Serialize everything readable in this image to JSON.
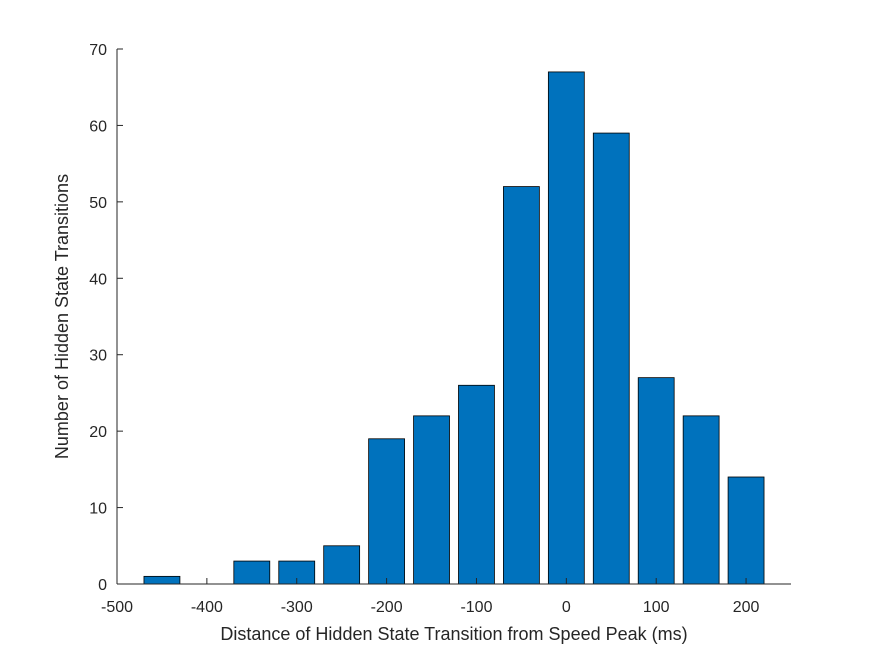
{
  "chart_data": {
    "type": "bar",
    "title": "",
    "xlabel": "Distance of Hidden State Transition from Speed Peak (ms)",
    "ylabel": "Number of Hidden State Transitions",
    "xlim": [
      -500,
      250
    ],
    "ylim": [
      0,
      70
    ],
    "xticks": [
      -500,
      -400,
      -300,
      -200,
      -100,
      0,
      100,
      200
    ],
    "yticks": [
      0,
      10,
      20,
      30,
      40,
      50,
      60,
      70
    ],
    "bin_width": 50,
    "x": [
      -450,
      -400,
      -350,
      -300,
      -250,
      -200,
      -150,
      -100,
      -50,
      0,
      50,
      100,
      150,
      200
    ],
    "values": [
      1,
      0,
      3,
      3,
      5,
      19,
      22,
      26,
      52,
      67,
      59,
      27,
      22,
      14
    ],
    "grid": false,
    "bar_color": "#0072BD",
    "edge_color": "#000000"
  }
}
